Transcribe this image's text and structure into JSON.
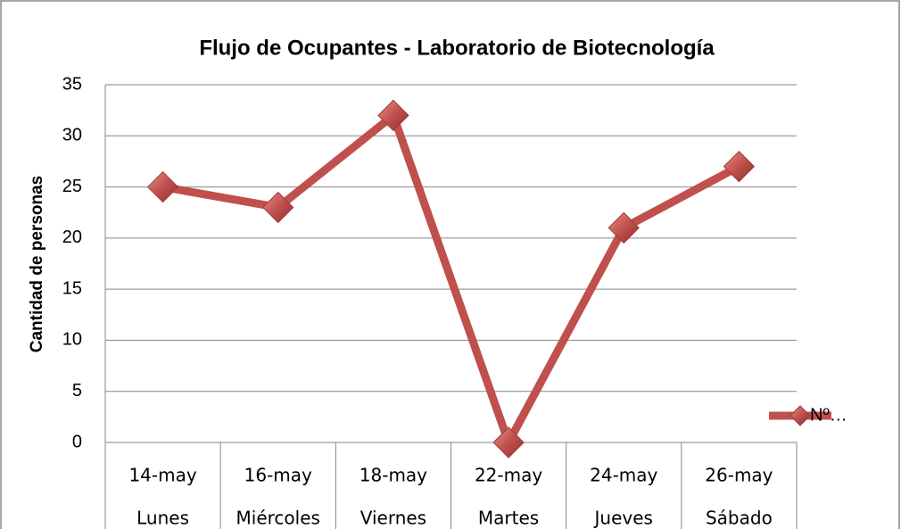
{
  "chart_data": {
    "type": "line",
    "title": "Flujo de Ocupantes - Laboratorio de Biotecnología",
    "y_label": "Cantidad de personas",
    "categories": [
      "14-may",
      "16-may",
      "18-may",
      "22-may",
      "24-may",
      "26-may"
    ],
    "weekdays": [
      "Lunes",
      "Miércoles",
      "Viernes",
      "Martes",
      "Jueves",
      "Sábado"
    ],
    "series": [
      {
        "name": "Nº…",
        "color": "#c0504d",
        "values": [
          25,
          23,
          32,
          0,
          21,
          27
        ]
      }
    ],
    "ylim": [
      0,
      35
    ],
    "yticks": [
      0,
      5,
      10,
      15,
      20,
      25,
      30,
      35
    ],
    "grid": true,
    "legend": "right"
  }
}
